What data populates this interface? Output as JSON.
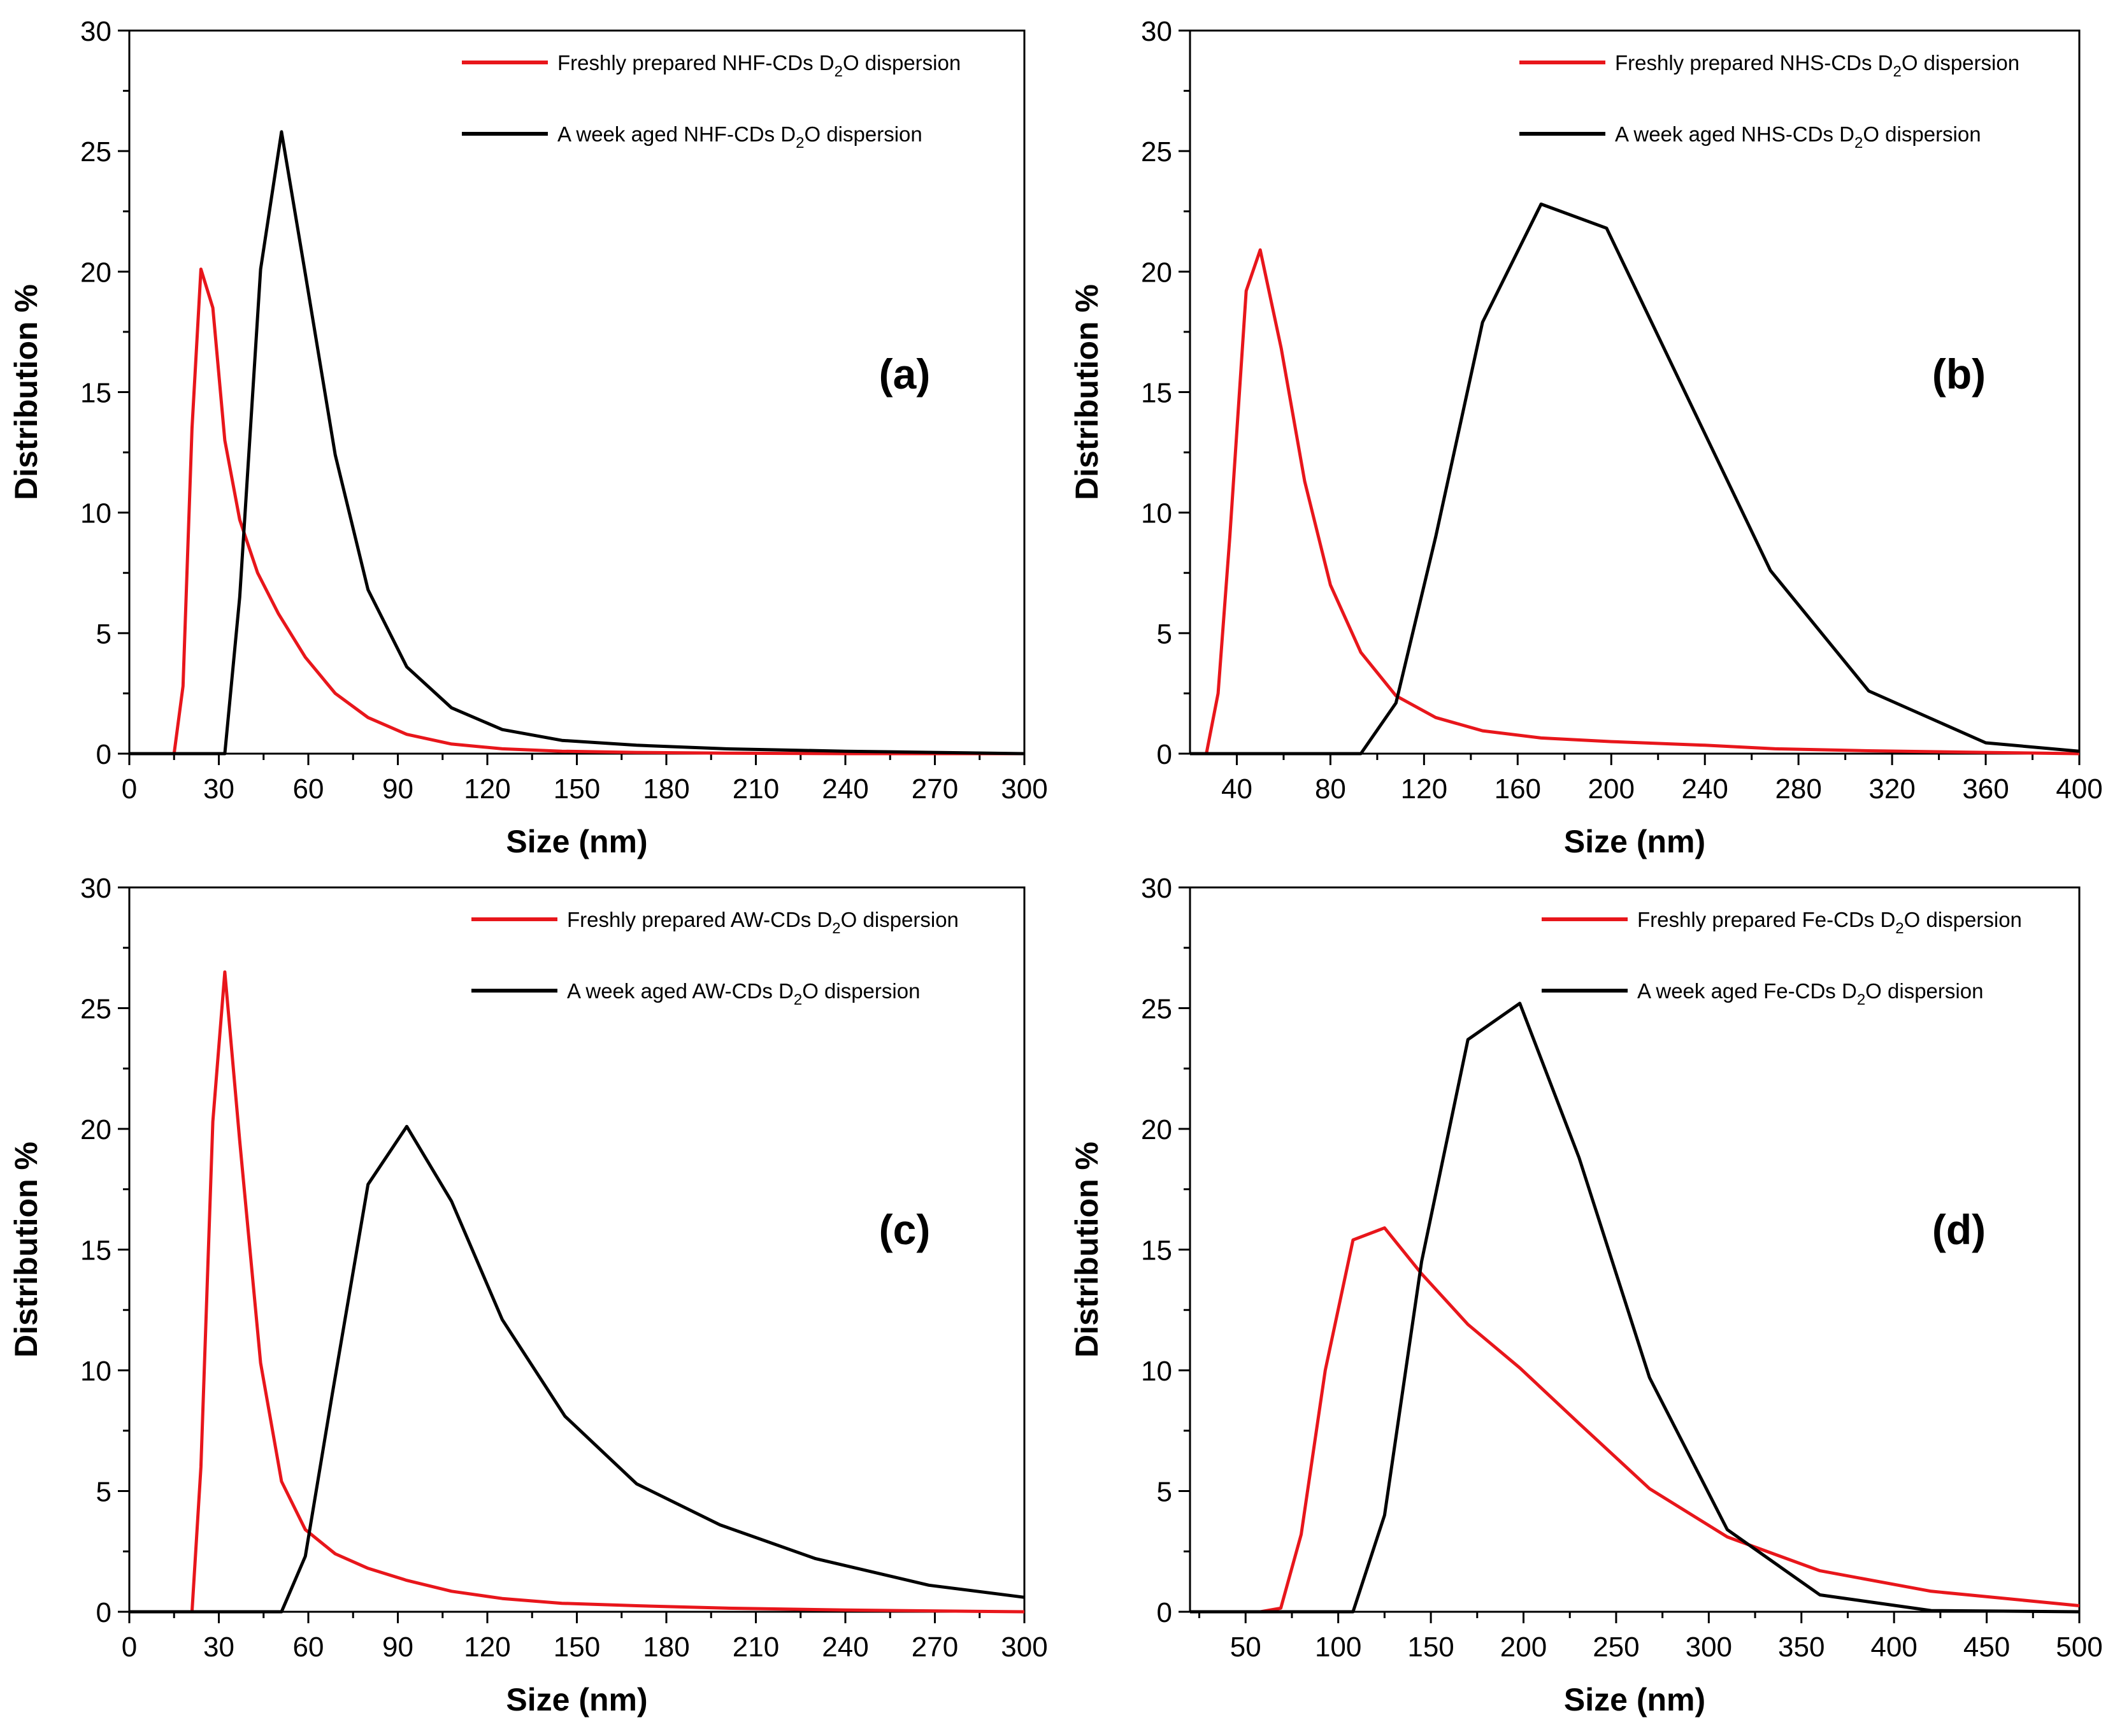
{
  "colors": {
    "fresh": "#e8161b",
    "aged": "#000000"
  },
  "chart_data": [
    {
      "type": "line",
      "panel_label": "(a)",
      "xlabel": "Size (nm)",
      "ylabel": "Distribution %",
      "xlim": [
        0,
        300
      ],
      "ylim": [
        0,
        30
      ],
      "grid": false,
      "xticks": [
        0,
        30,
        60,
        90,
        120,
        150,
        180,
        210,
        240,
        270,
        300
      ],
      "xtick_labels": [
        "0",
        "30",
        "60",
        "90",
        "120",
        "150",
        "180",
        "210",
        "240",
        "270",
        "300"
      ],
      "yticks": [
        0,
        5,
        10,
        15,
        20,
        25,
        30
      ],
      "ytick_labels": [
        "0",
        "5",
        "10",
        "15",
        "20",
        "25",
        "30"
      ],
      "legend_position": "top-right",
      "series": [
        {
          "name": "Freshly prepared NHF-CDs D2O dispersion",
          "legend_before": "Freshly prepared NHF-CDs D",
          "legend_sub": "2",
          "legend_after": "O dispersion",
          "color_key": "fresh",
          "x": [
            15,
            18,
            21,
            24,
            28,
            32,
            37,
            43,
            50,
            59,
            69,
            80,
            93,
            108,
            125,
            145,
            170,
            200,
            240,
            300
          ],
          "y": [
            0,
            2.8,
            13.5,
            20.1,
            18.5,
            13,
            9.7,
            7.5,
            5.8,
            4.0,
            2.5,
            1.5,
            0.8,
            0.4,
            0.2,
            0.1,
            0.05,
            0.02,
            0,
            0
          ]
        },
        {
          "name": "A week aged NHF-CDs D2O dispersion",
          "legend_before": "A week aged NHF-CDs D",
          "legend_sub": "2",
          "legend_after": "O dispersion",
          "color_key": "aged",
          "x": [
            0,
            32,
            37,
            44,
            51,
            59,
            69,
            80,
            93,
            108,
            125,
            145,
            170,
            200,
            240,
            270,
            300
          ],
          "y": [
            0,
            0,
            6.5,
            20.1,
            25.8,
            19.9,
            12.4,
            6.8,
            3.6,
            1.9,
            1.0,
            0.55,
            0.35,
            0.2,
            0.1,
            0.05,
            0
          ]
        }
      ]
    },
    {
      "type": "line",
      "panel_label": "(b)",
      "xlabel": "Size (nm)",
      "ylabel": "Distribution %",
      "xlim": [
        20,
        400
      ],
      "ylim": [
        0,
        30
      ],
      "grid": false,
      "xticks": [
        40,
        80,
        120,
        160,
        200,
        240,
        280,
        320,
        360,
        400
      ],
      "xtick_labels": [
        "40",
        "80",
        "120",
        "160",
        "200",
        "240",
        "280",
        "320",
        "360",
        "400"
      ],
      "yticks": [
        0,
        5,
        10,
        15,
        20,
        25,
        30
      ],
      "ytick_labels": [
        "0",
        "5",
        "10",
        "15",
        "20",
        "25",
        "30"
      ],
      "legend_position": "top-right",
      "series": [
        {
          "name": "Freshly prepared NHS-CDs D2O dispersion",
          "legend_before": "Freshly prepared NHS-CDs D",
          "legend_sub": "2",
          "legend_after": "O dispersion",
          "color_key": "fresh",
          "x": [
            27,
            32,
            37,
            44,
            50,
            59,
            69,
            80,
            93,
            108,
            125,
            145,
            170,
            200,
            240,
            270,
            310,
            360,
            400
          ],
          "y": [
            0,
            2.5,
            9.0,
            19.2,
            20.9,
            16.8,
            11.3,
            7.0,
            4.2,
            2.4,
            1.5,
            0.95,
            0.65,
            0.5,
            0.35,
            0.2,
            0.12,
            0.05,
            0
          ]
        },
        {
          "name": "A week aged NHS-CDs D2O dispersion",
          "legend_before": "A week aged NHS-CDs D",
          "legend_sub": "2",
          "legend_after": "O dispersion",
          "color_key": "aged",
          "x": [
            20,
            93,
            108,
            125,
            145,
            170,
            198,
            230,
            268,
            310,
            360,
            400
          ],
          "y": [
            0,
            0,
            2.1,
            9.0,
            17.9,
            22.8,
            21.8,
            15.3,
            7.6,
            2.6,
            0.45,
            0.1
          ]
        }
      ]
    },
    {
      "type": "line",
      "panel_label": "(c)",
      "xlabel": "Size (nm)",
      "ylabel": "Distribution %",
      "xlim": [
        0,
        300
      ],
      "ylim": [
        0,
        30
      ],
      "grid": false,
      "xticks": [
        0,
        30,
        60,
        90,
        120,
        150,
        180,
        210,
        240,
        270,
        300
      ],
      "xtick_labels": [
        "0",
        "30",
        "60",
        "90",
        "120",
        "150",
        "180",
        "210",
        "240",
        "270",
        "300"
      ],
      "yticks": [
        0,
        5,
        10,
        15,
        20,
        25,
        30
      ],
      "ytick_labels": [
        "0",
        "5",
        "10",
        "15",
        "20",
        "25",
        "30"
      ],
      "legend_position": "top-right",
      "series": [
        {
          "name": "Freshly prepared AW-CDs D2O dispersion",
          "legend_before": "Freshly prepared AW-CDs D",
          "legend_sub": "2",
          "legend_after": "O dispersion",
          "color_key": "fresh",
          "x": [
            0,
            21,
            24,
            28,
            32,
            37,
            44,
            51,
            59,
            69,
            80,
            93,
            108,
            125,
            145,
            170,
            200,
            240,
            300
          ],
          "y": [
            0,
            0,
            6.0,
            20.3,
            26.5,
            19.5,
            10.3,
            5.4,
            3.4,
            2.4,
            1.8,
            1.3,
            0.85,
            0.55,
            0.35,
            0.25,
            0.15,
            0.07,
            0
          ]
        },
        {
          "name": "A week aged AW-CDs D2O dispersion",
          "legend_before": "A week aged AW-CDs D",
          "legend_sub": "2",
          "legend_after": "O dispersion",
          "color_key": "aged",
          "x": [
            0,
            51,
            59,
            68,
            80,
            93,
            108,
            125,
            146,
            170,
            198,
            230,
            268,
            300
          ],
          "y": [
            0,
            0,
            2.3,
            9.0,
            17.7,
            20.1,
            17.0,
            12.1,
            8.1,
            5.3,
            3.6,
            2.2,
            1.1,
            0.6
          ]
        }
      ]
    },
    {
      "type": "line",
      "panel_label": "(d)",
      "xlabel": "Size (nm)",
      "ylabel": "Distribution %",
      "xlim": [
        20,
        500
      ],
      "ylim": [
        0,
        30
      ],
      "grid": false,
      "xticks": [
        50,
        100,
        150,
        200,
        250,
        300,
        350,
        400,
        450,
        500
      ],
      "xtick_labels": [
        "50",
        "100",
        "150",
        "200",
        "250",
        "300",
        "350",
        "400",
        "450",
        "500"
      ],
      "yticks": [
        0,
        5,
        10,
        15,
        20,
        25,
        30
      ],
      "ytick_labels": [
        "0",
        "5",
        "10",
        "15",
        "20",
        "25",
        "30"
      ],
      "legend_position": "top-right",
      "series": [
        {
          "name": "Freshly prepared Fe-CDs D2O dispersion",
          "legend_before": "Freshly prepared Fe-CDs D",
          "legend_sub": "2",
          "legend_after": "O dispersion",
          "color_key": "fresh",
          "x": [
            20,
            58,
            69,
            80,
            93,
            108,
            125,
            145,
            170,
            198,
            230,
            268,
            310,
            360,
            420,
            500
          ],
          "y": [
            0,
            0,
            0.15,
            3.2,
            10.0,
            15.4,
            15.9,
            14.0,
            11.9,
            10.1,
            7.8,
            5.1,
            3.1,
            1.7,
            0.85,
            0.25
          ]
        },
        {
          "name": "A week aged Fe-CDs D2O dispersion",
          "legend_before": "A week aged Fe-CDs D",
          "legend_sub": "2",
          "legend_after": "O dispersion",
          "color_key": "aged",
          "x": [
            20,
            108,
            125,
            145,
            170,
            198,
            230,
            268,
            310,
            360,
            420,
            500
          ],
          "y": [
            0,
            0,
            4.0,
            14.5,
            23.7,
            25.2,
            18.8,
            9.7,
            3.4,
            0.7,
            0.05,
            0
          ]
        }
      ]
    }
  ]
}
